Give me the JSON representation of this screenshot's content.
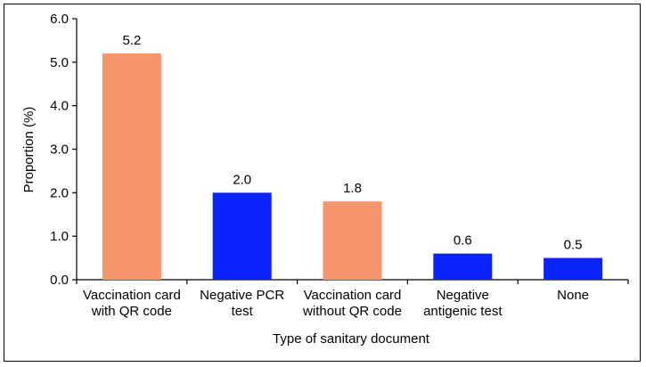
{
  "chart_data": {
    "type": "bar",
    "title": "",
    "xlabel": "Type of sanitary document",
    "ylabel": "Proportion (%)",
    "ylim": [
      0,
      6
    ],
    "yticks": [
      "0.0",
      "1.0",
      "2.0",
      "3.0",
      "4.0",
      "5.0",
      "6.0"
    ],
    "categories": [
      [
        "Vaccination card",
        "with QR code"
      ],
      [
        "Negative PCR",
        "test"
      ],
      [
        "Vaccination card",
        "without QR code"
      ],
      [
        "Negative",
        "antigenic test"
      ],
      [
        "None"
      ]
    ],
    "values": [
      5.2,
      2.0,
      1.8,
      0.6,
      0.5
    ],
    "value_labels": [
      "5.2",
      "2.0",
      "1.8",
      "0.6",
      "0.5"
    ],
    "bar_colors": [
      "#F7956F",
      "#0B24FB",
      "#F7956F",
      "#0B24FB",
      "#0B24FB"
    ],
    "grid": false,
    "legend": "none"
  }
}
